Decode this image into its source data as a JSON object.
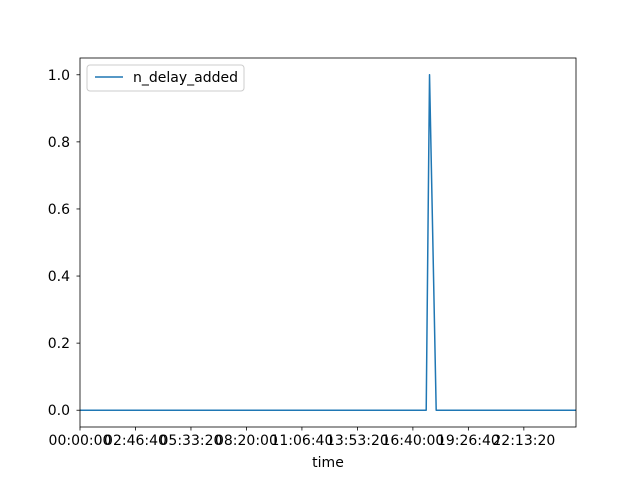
{
  "chart_data": {
    "type": "line",
    "title": "",
    "xlabel": "time",
    "ylabel": "",
    "xlim_seconds": [
      0,
      89400
    ],
    "ylim": [
      -0.05,
      1.05
    ],
    "x_ticks": [
      {
        "value": 0,
        "label": "00:00:00"
      },
      {
        "value": 10000,
        "label": "02:46:40"
      },
      {
        "value": 20000,
        "label": "05:33:20"
      },
      {
        "value": 30000,
        "label": "08:20:00"
      },
      {
        "value": 40000,
        "label": "11:06:40"
      },
      {
        "value": 50000,
        "label": "13:53:20"
      },
      {
        "value": 60000,
        "label": "16:40:00"
      },
      {
        "value": 70000,
        "label": "19:26:40"
      },
      {
        "value": 80000,
        "label": "22:13:20"
      }
    ],
    "y_ticks": [
      {
        "value": 0.0,
        "label": "0.0"
      },
      {
        "value": 0.2,
        "label": "0.2"
      },
      {
        "value": 0.4,
        "label": "0.4"
      },
      {
        "value": 0.6,
        "label": "0.6"
      },
      {
        "value": 0.8,
        "label": "0.8"
      },
      {
        "value": 1.0,
        "label": "1.0"
      }
    ],
    "series": [
      {
        "name": "n_delay_added",
        "color": "#1f77b4",
        "x": [
          0,
          62400,
          63000,
          64200,
          89400
        ],
        "y": [
          0,
          0,
          1,
          0,
          0
        ]
      }
    ],
    "legend": {
      "position": "top-left",
      "entries": [
        "n_delay_added"
      ]
    },
    "grid": false
  }
}
